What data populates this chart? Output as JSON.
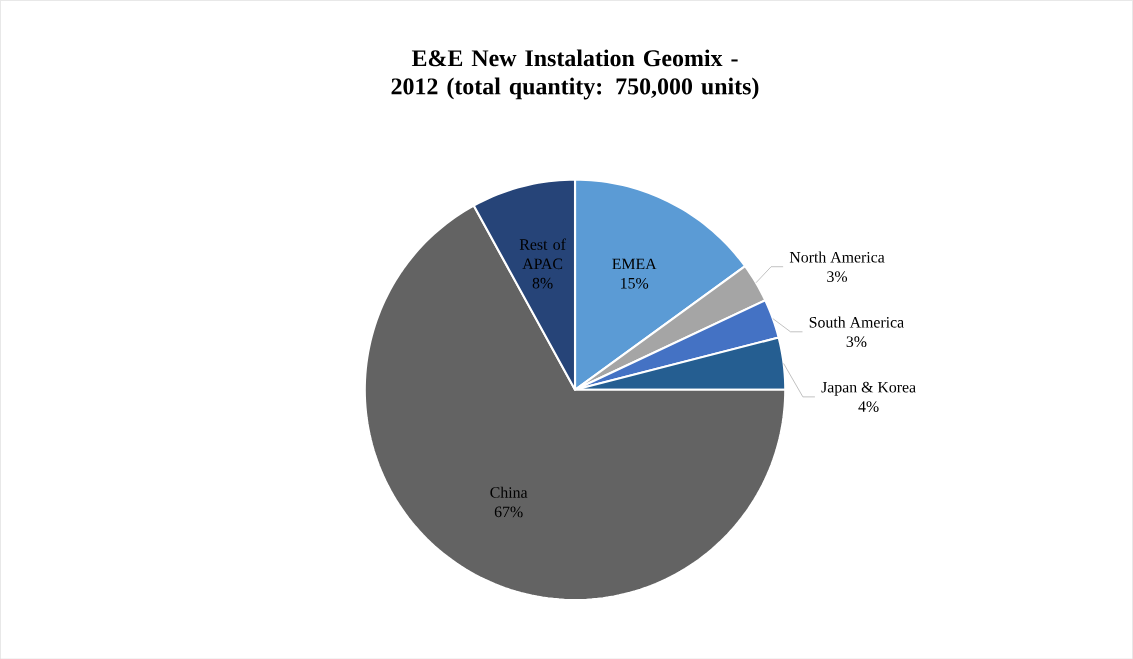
{
  "chart_data": {
    "type": "pie",
    "title": "E&E New Instalation Geomix - 2012 (total quantity: 750,000 units)",
    "categories": [
      "EMEA",
      "North America",
      "South America",
      "Japan & Korea",
      "China",
      "Rest of APAC"
    ],
    "values": [
      15,
      3,
      3,
      4,
      67,
      8
    ],
    "value_labels": [
      "15%",
      "3%",
      "3%",
      "4%",
      "67%",
      "8%"
    ],
    "colors": [
      "#5b9bd5",
      "#a5a5a5",
      "#4472c4",
      "#255e91",
      "#636363",
      "#264478"
    ],
    "legend": false
  }
}
